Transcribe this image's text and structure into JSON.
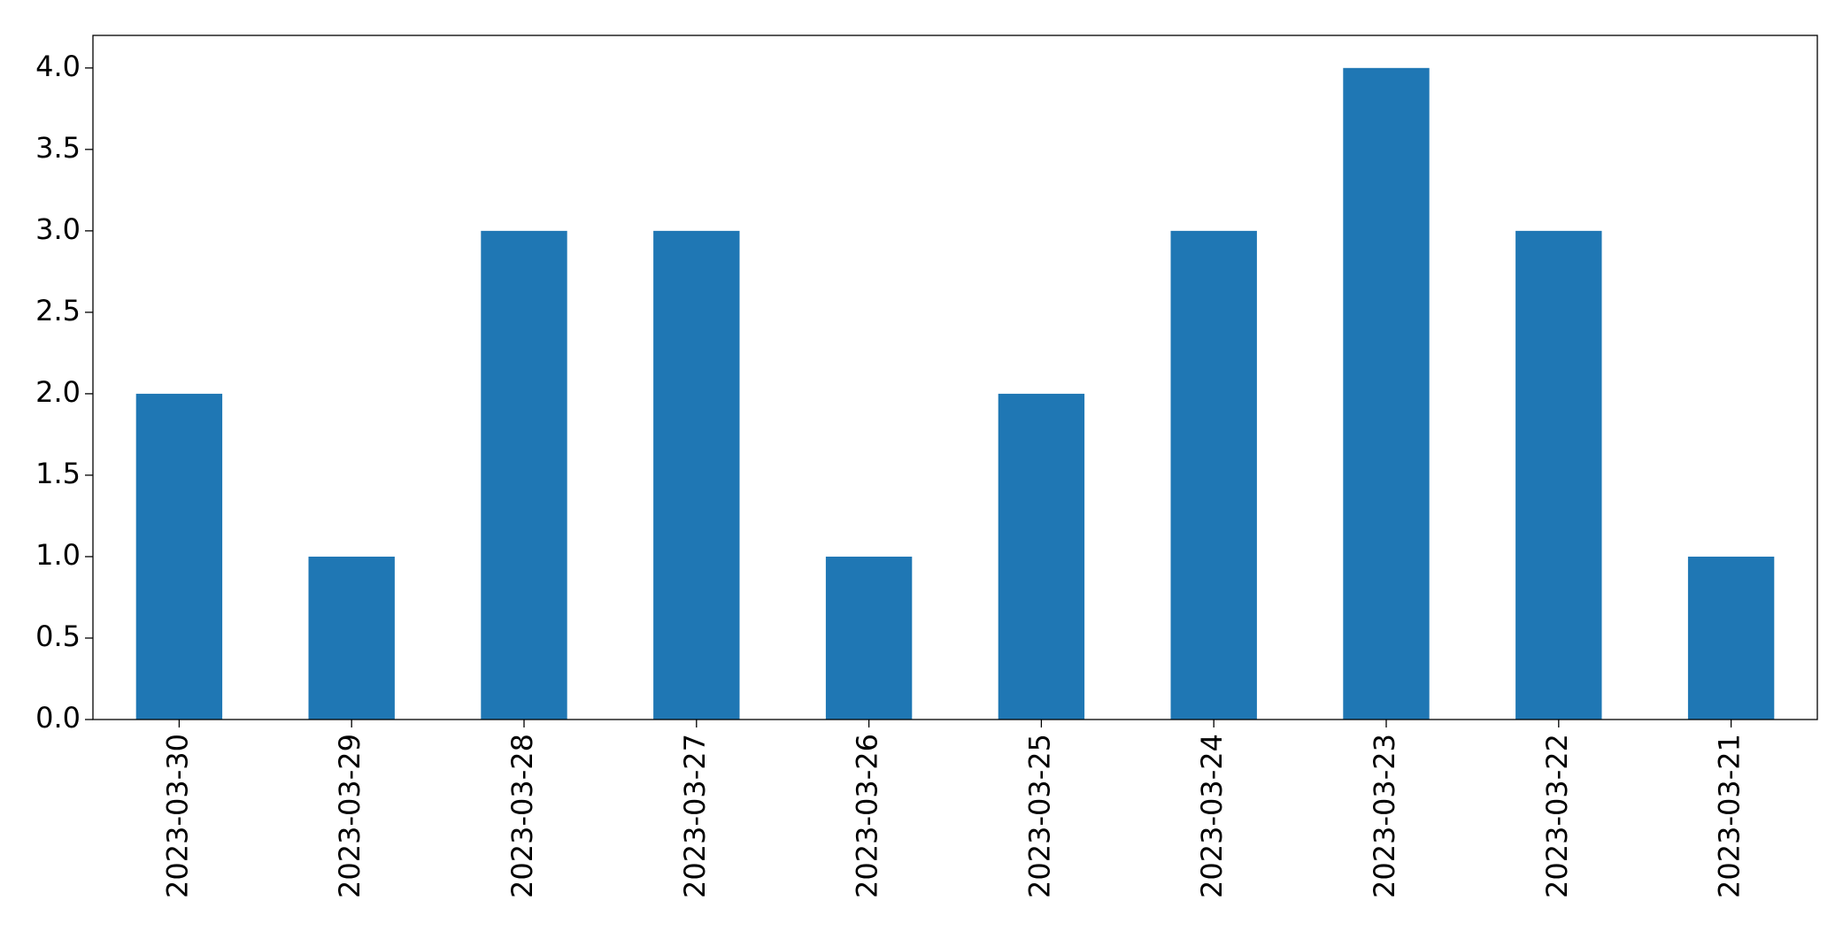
{
  "chart_data": {
    "type": "bar",
    "categories": [
      "2023-03-30",
      "2023-03-29",
      "2023-03-28",
      "2023-03-27",
      "2023-03-26",
      "2023-03-25",
      "2023-03-24",
      "2023-03-23",
      "2023-03-22",
      "2023-03-21"
    ],
    "values": [
      2,
      1,
      3,
      3,
      1,
      2,
      3,
      4,
      3,
      1
    ],
    "color": "#1f77b4",
    "ylim": [
      0,
      4.2
    ],
    "yticks": [
      {
        "value": 0,
        "label": "0.0"
      },
      0.5,
      {
        "value": 1,
        "label": "1.0"
      },
      1.5,
      {
        "value": 2,
        "label": "2.0"
      },
      2.5,
      {
        "value": 3,
        "label": "3.0"
      },
      3.5,
      {
        "value": 4,
        "label": "4.0"
      }
    ],
    "grid": false
  }
}
